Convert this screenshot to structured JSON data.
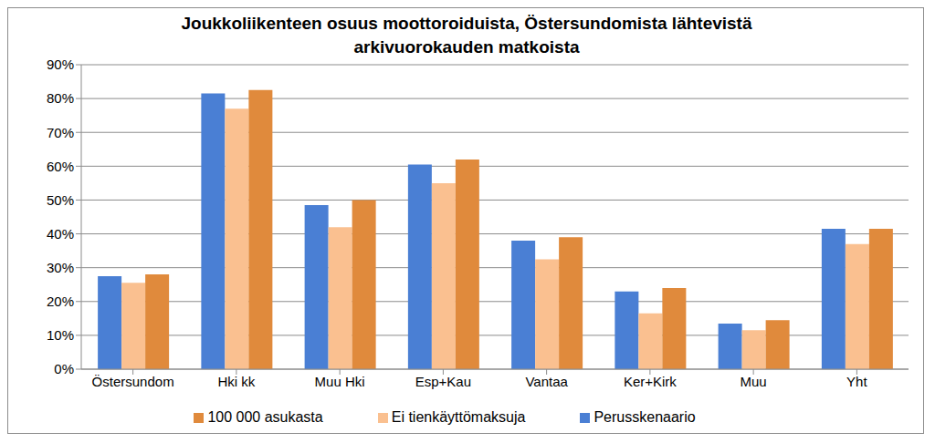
{
  "chart_data": {
    "type": "bar",
    "title": "Joukkoliikenteen osuus moottoroiduista, Östersundomista lähtevistä\narkivuorokauden matkoista",
    "categories": [
      "Östersundom",
      "Hki kk",
      "Muu Hki",
      "Esp+Kau",
      "Vantaa",
      "Ker+Kirk",
      "Muu",
      "Yht"
    ],
    "series": [
      {
        "name": "Perusskenaario",
        "color": "#4a7fd4",
        "values": [
          27.5,
          81.5,
          48.5,
          60.5,
          38,
          23,
          13.5,
          41.5
        ]
      },
      {
        "name": "Ei tienkäyttömaksuja",
        "color": "#fac090",
        "values": [
          25.5,
          77,
          42,
          55,
          32.5,
          16.5,
          11.5,
          37
        ]
      },
      {
        "name": "100 000 asukasta",
        "color": "#e08a3c",
        "values": [
          28,
          82.5,
          50,
          62,
          39,
          24,
          14.5,
          41.5
        ]
      }
    ],
    "ylim": [
      0,
      90
    ],
    "yticks": [
      {
        "value": 0,
        "label": "0%"
      },
      {
        "value": 10,
        "label": "10%"
      },
      {
        "value": 20,
        "label": "20%"
      },
      {
        "value": 30,
        "label": "30%"
      },
      {
        "value": 40,
        "label": "40%"
      },
      {
        "value": 50,
        "label": "50%"
      },
      {
        "value": 60,
        "label": "60%"
      },
      {
        "value": 70,
        "label": "70%"
      },
      {
        "value": 80,
        "label": "80%"
      },
      {
        "value": 90,
        "label": "90%"
      }
    ],
    "grid": true,
    "legend": "bottom"
  }
}
